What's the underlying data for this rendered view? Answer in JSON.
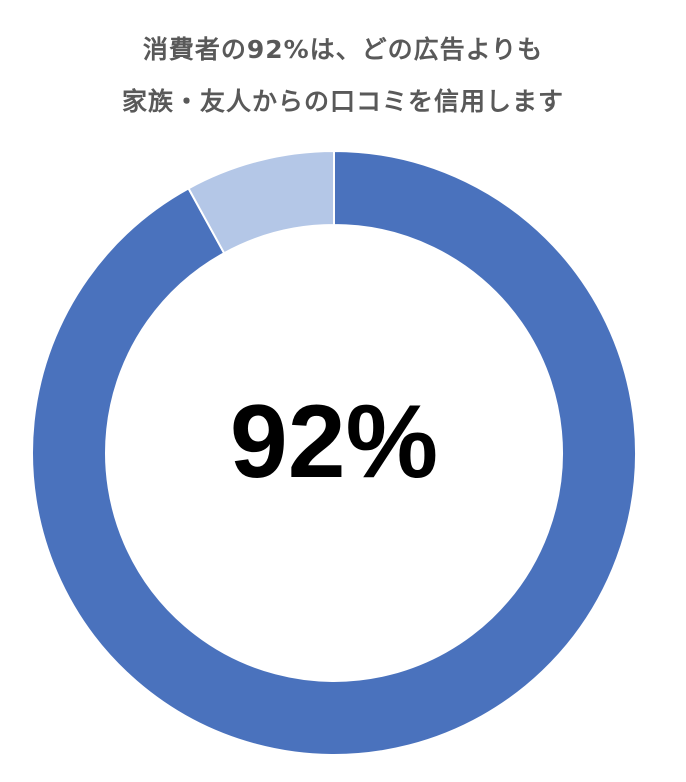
{
  "chart_data": {
    "type": "pie",
    "donut": true,
    "title": [
      "消費者の92%は、どの広告よりも",
      "家族・友人からの口コミを信用します"
    ],
    "categories": [
      "",
      ""
    ],
    "values": [
      92,
      8
    ],
    "colors": [
      "#4A72BD",
      "#B4C7E7"
    ],
    "center_label": "92%",
    "legend": "none"
  }
}
